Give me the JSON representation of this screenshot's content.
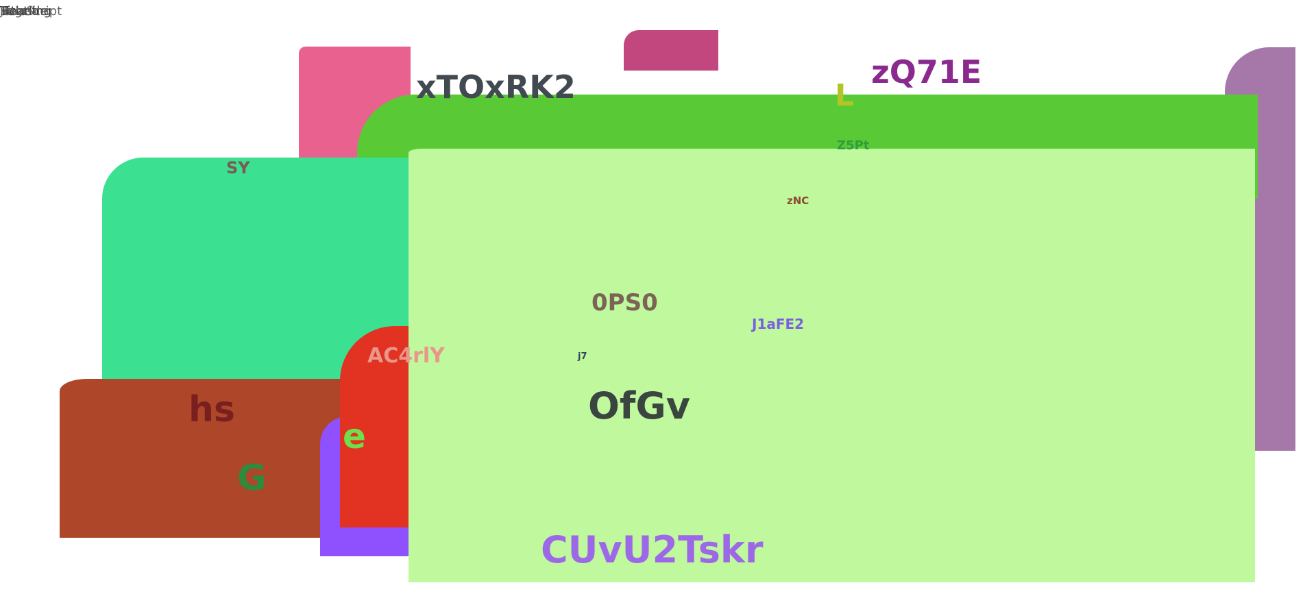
{
  "header": {
    "overlapping_titles": [
      "Title",
      "Heading",
      "Subtitle",
      "Page",
      "JavaScript"
    ]
  },
  "labels": {
    "xTOxRK2": "xTOxRK2",
    "zQ71E": "zQ71E",
    "L": "L",
    "Z5Pt": "Z5Pt",
    "zNC": "zNC",
    "SY": "SY",
    "0PS0": "0PS0",
    "J1aFE2": "J1aFE2",
    "AC4rlY": "AC4rlY",
    "j7": "j7",
    "OfGv": "OfGv",
    "hs": "hs",
    "e": "e",
    "G": "G",
    "CUvU2Tskr": "CUvU2Tskr"
  },
  "colors": {
    "pink": "#e8618f",
    "magenta": "#c2477f",
    "purple_right": "#a678a9",
    "green_top": "#5ac936",
    "teal": "#3be091",
    "brown": "#ae4629",
    "violet": "#8f50fe",
    "red": "#e13222",
    "light_green": "#bff89d"
  }
}
